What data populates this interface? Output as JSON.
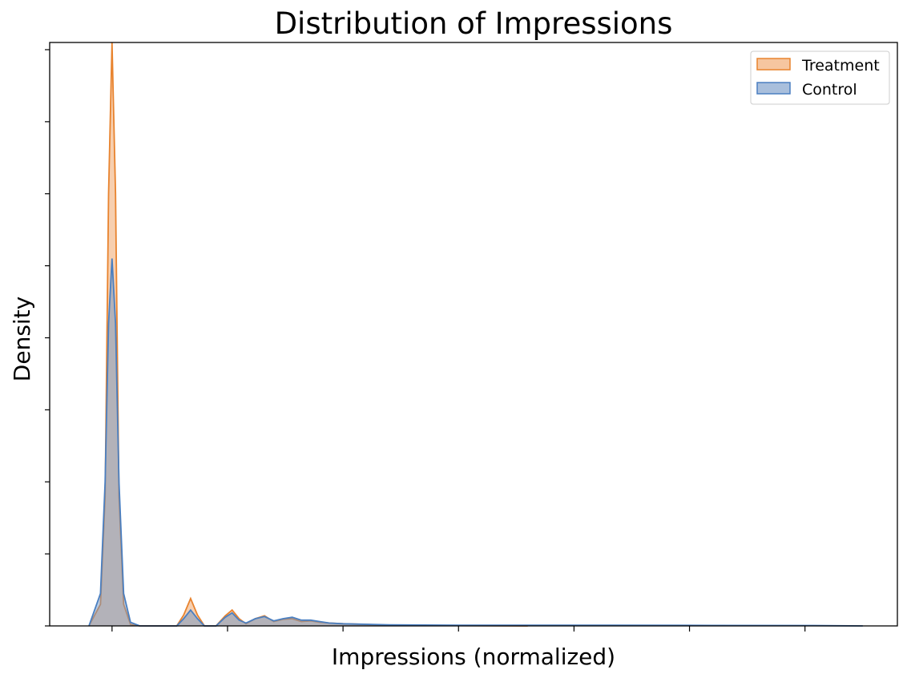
{
  "chart_data": {
    "type": "area",
    "title": "Distribution of Impressions",
    "xlabel": "Impressions (normalized)",
    "ylabel": "Density",
    "xlim": [
      -0.27,
      3.4
    ],
    "ylim": [
      0,
      8.1
    ],
    "tick_labels_shown": false,
    "legend_placement": "top-right",
    "series": [
      {
        "name": "Treatment",
        "color": "#f0a060",
        "edge_color": "#e8832e",
        "x": [
          -0.1,
          -0.05,
          -0.03,
          -0.015,
          0,
          0.015,
          0.03,
          0.05,
          0.08,
          0.12,
          0.28,
          0.31,
          0.34,
          0.37,
          0.4,
          0.45,
          0.49,
          0.52,
          0.55,
          0.58,
          0.62,
          0.66,
          0.7,
          0.74,
          0.78,
          0.82,
          0.86,
          0.9,
          0.94,
          1.0,
          1.1,
          1.2,
          1.5,
          1.8
        ],
        "y": [
          0,
          0.3,
          1.8,
          6.0,
          8.1,
          6.0,
          1.8,
          0.3,
          0.02,
          0,
          0,
          0.15,
          0.38,
          0.15,
          0,
          0,
          0.14,
          0.22,
          0.1,
          0.03,
          0.1,
          0.14,
          0.06,
          0.09,
          0.1,
          0.06,
          0.07,
          0.05,
          0.04,
          0.03,
          0.02,
          0.01,
          0.005,
          0
        ]
      },
      {
        "name": "Control",
        "color": "#6f95c4",
        "edge_color": "#4a7fc1",
        "x": [
          -0.1,
          -0.05,
          -0.03,
          -0.015,
          0,
          0.015,
          0.03,
          0.05,
          0.08,
          0.12,
          0.28,
          0.31,
          0.34,
          0.37,
          0.4,
          0.45,
          0.49,
          0.52,
          0.55,
          0.58,
          0.62,
          0.66,
          0.7,
          0.74,
          0.78,
          0.82,
          0.86,
          0.9,
          0.94,
          1.0,
          1.2,
          1.5,
          2.0,
          2.5,
          3.0,
          3.25
        ],
        "y": [
          0,
          0.45,
          2.0,
          4.2,
          5.1,
          4.2,
          2.0,
          0.45,
          0.05,
          0,
          0,
          0.1,
          0.22,
          0.1,
          0,
          0,
          0.12,
          0.18,
          0.08,
          0.04,
          0.1,
          0.13,
          0.07,
          0.1,
          0.12,
          0.08,
          0.08,
          0.06,
          0.04,
          0.03,
          0.015,
          0.01,
          0.01,
          0.008,
          0.006,
          0
        ]
      }
    ],
    "x_tick_count": 7,
    "y_tick_count": 9
  }
}
